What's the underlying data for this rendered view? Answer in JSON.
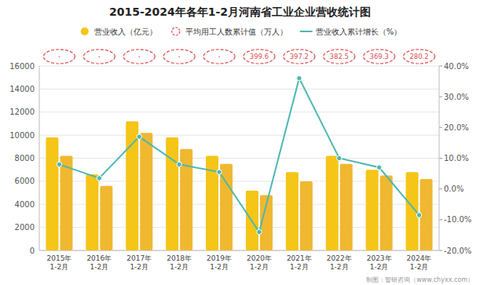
{
  "chart_data": {
    "type": "bar",
    "title": "2015-2024年各年1-2月河南省工业企业营收统计图",
    "categories": [
      "2015年\n1-2月",
      "2016年\n1-2月",
      "2017年\n1-2月",
      "2018年\n1-2月",
      "2019年\n1-2月",
      "2020年\n1-2月",
      "2021年\n1-2月",
      "2022年\n1-2月",
      "2023年\n1-2月",
      "2024年\n1-2月"
    ],
    "series": [
      {
        "name": "营业收入（亿元）",
        "color": "#F5C518",
        "values": [
          9800,
          6600,
          11200,
          9800,
          8200,
          5200,
          6800,
          8200,
          7000,
          6800
        ]
      },
      {
        "color": "#F0B830",
        "values": [
          8200,
          5600,
          10200,
          8800,
          7500,
          4800,
          6000,
          7500,
          6500,
          6200
        ]
      },
      {
        "name": "平均用工人数累计值（万人）",
        "type": "label",
        "color": "#E05050",
        "line_style": "dashed",
        "values": [
          null,
          null,
          null,
          null,
          null,
          399.6,
          397.2,
          382.5,
          369.3,
          280.2
        ],
        "value_labels": [
          "-",
          "-",
          "-",
          "-",
          "-",
          "399.6",
          "397.2",
          "382.5",
          "369.3",
          "280.2"
        ]
      },
      {
        "name": "营业收入累计增长（%）",
        "type": "line",
        "axis": "y2",
        "color": "#4DB8B0",
        "marker": "circle",
        "values": [
          8.0,
          3.5,
          17.0,
          8.0,
          5.5,
          -14.0,
          36.0,
          10.0,
          7.0,
          -8.5
        ]
      }
    ],
    "ylim": [
      0,
      16000
    ],
    "yticks": [
      0,
      2000,
      4000,
      6000,
      8000,
      10000,
      12000,
      14000,
      16000
    ],
    "y2lim": [
      -20.0,
      40.0
    ],
    "y2ticks": [
      {
        "value": -20.0,
        "label": "-20.0%"
      },
      {
        "value": -10.0,
        "label": "-10.0%"
      },
      {
        "value": 0.0,
        "label": "0.0%"
      },
      {
        "value": 10.0,
        "label": "10.0%"
      },
      {
        "value": 20.0,
        "label": "20.0%"
      },
      {
        "value": 30.0,
        "label": "30.0%"
      },
      {
        "value": 40.0,
        "label": "40.0%"
      }
    ],
    "grid": true,
    "legend": "top",
    "annotations": [
      "制图：智研咨询（www.chyxx.com）"
    ]
  }
}
